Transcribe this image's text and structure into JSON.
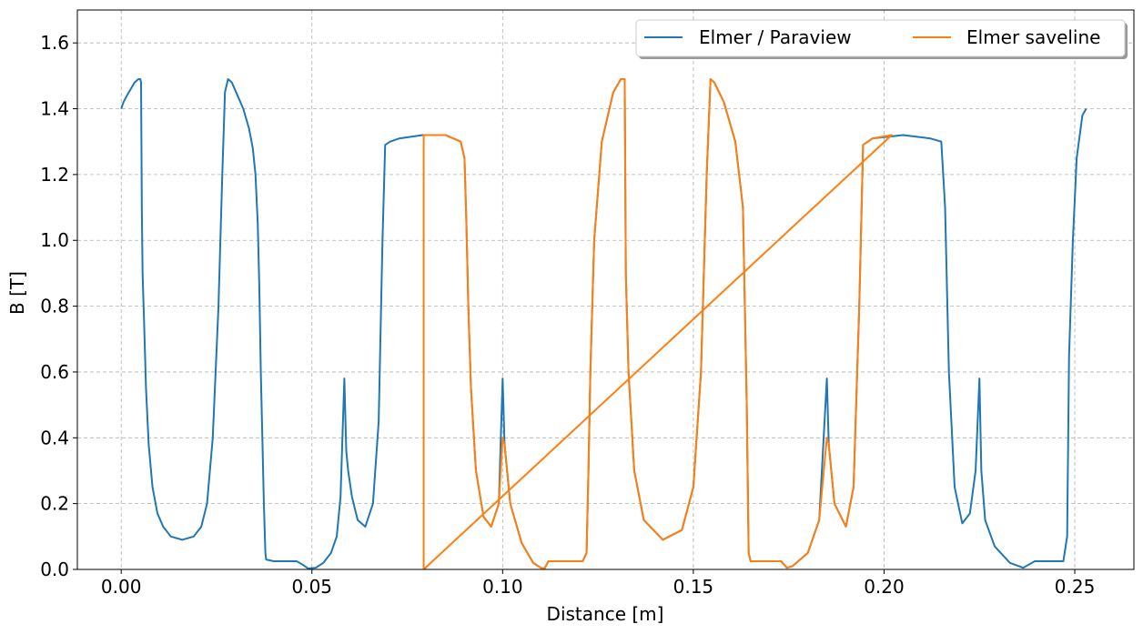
{
  "chart_data": {
    "type": "line",
    "title": "",
    "xlabel": "Distance [m]",
    "ylabel": "B [T]",
    "xlim": [
      -0.0115,
      0.2655
    ],
    "ylim": [
      0.0,
      1.7
    ],
    "x_ticks": [
      0.0,
      0.05,
      0.1,
      0.15,
      0.2,
      0.25
    ],
    "x_tick_labels": [
      "0.00",
      "0.05",
      "0.10",
      "0.15",
      "0.20",
      "0.25"
    ],
    "y_ticks": [
      0.0,
      0.2,
      0.4,
      0.6,
      0.8,
      1.0,
      1.2,
      1.4,
      1.6
    ],
    "y_tick_labels": [
      "0.0",
      "0.2",
      "0.4",
      "0.6",
      "0.8",
      "1.0",
      "1.2",
      "1.4",
      "1.6"
    ],
    "grid": true,
    "legend": {
      "placement": "top-right",
      "columns": 2
    },
    "series": [
      {
        "name": "Elmer / Paraview",
        "color": "#1f77b4",
        "points": [
          [
            0.0,
            1.4
          ],
          [
            0.0006,
            1.42
          ],
          [
            0.0015,
            1.44
          ],
          [
            0.0025,
            1.46
          ],
          [
            0.0035,
            1.48
          ],
          [
            0.0045,
            1.49
          ],
          [
            0.005,
            1.49
          ],
          [
            0.0052,
            1.48
          ],
          [
            0.0053,
            1.3
          ],
          [
            0.0054,
            1.1
          ],
          [
            0.0056,
            0.9
          ],
          [
            0.006,
            0.75
          ],
          [
            0.0065,
            0.55
          ],
          [
            0.0072,
            0.38
          ],
          [
            0.0082,
            0.25
          ],
          [
            0.0095,
            0.17
          ],
          [
            0.011,
            0.13
          ],
          [
            0.013,
            0.1
          ],
          [
            0.016,
            0.09
          ],
          [
            0.019,
            0.1
          ],
          [
            0.021,
            0.13
          ],
          [
            0.0225,
            0.2
          ],
          [
            0.024,
            0.4
          ],
          [
            0.0255,
            0.8
          ],
          [
            0.0265,
            1.2
          ],
          [
            0.0272,
            1.45
          ],
          [
            0.028,
            1.49
          ],
          [
            0.029,
            1.48
          ],
          [
            0.0305,
            1.44
          ],
          [
            0.032,
            1.4
          ],
          [
            0.0335,
            1.34
          ],
          [
            0.0345,
            1.28
          ],
          [
            0.0352,
            1.2
          ],
          [
            0.0358,
            1.05
          ],
          [
            0.0362,
            0.86
          ],
          [
            0.0366,
            0.6
          ],
          [
            0.037,
            0.4
          ],
          [
            0.0374,
            0.2
          ],
          [
            0.0378,
            0.05
          ],
          [
            0.038,
            0.03
          ],
          [
            0.04,
            0.025
          ],
          [
            0.046,
            0.025
          ],
          [
            0.0475,
            0.015
          ],
          [
            0.049,
            0.003
          ],
          [
            0.051,
            0.005
          ],
          [
            0.053,
            0.02
          ],
          [
            0.055,
            0.05
          ],
          [
            0.0565,
            0.1
          ],
          [
            0.0575,
            0.22
          ],
          [
            0.0585,
            0.58
          ],
          [
            0.059,
            0.36
          ],
          [
            0.0595,
            0.3
          ],
          [
            0.0605,
            0.22
          ],
          [
            0.062,
            0.15
          ],
          [
            0.064,
            0.13
          ],
          [
            0.066,
            0.2
          ],
          [
            0.0675,
            0.45
          ],
          [
            0.0685,
            1.0
          ],
          [
            0.0692,
            1.29
          ],
          [
            0.0705,
            1.3
          ],
          [
            0.073,
            1.31
          ],
          [
            0.079,
            1.32
          ],
          [
            0.085,
            1.32
          ],
          [
            0.089,
            1.3
          ],
          [
            0.09,
            1.25
          ],
          [
            0.0905,
            1.05
          ],
          [
            0.091,
            0.8
          ],
          [
            0.0917,
            0.55
          ],
          [
            0.093,
            0.3
          ],
          [
            0.095,
            0.16
          ],
          [
            0.097,
            0.13
          ],
          [
            0.099,
            0.2
          ],
          [
            0.1,
            0.58
          ],
          [
            0.1005,
            0.38
          ],
          [
            0.102,
            0.2
          ],
          [
            0.105,
            0.08
          ],
          [
            0.108,
            0.02
          ],
          [
            0.11,
            0.005
          ],
          [
            0.111,
            0.003
          ],
          [
            0.112,
            0.025
          ],
          [
            0.115,
            0.025
          ],
          [
            0.121,
            0.025
          ],
          [
            0.122,
            0.05
          ],
          [
            0.1225,
            0.3
          ],
          [
            0.123,
            0.6
          ],
          [
            0.124,
            1.0
          ],
          [
            0.126,
            1.3
          ],
          [
            0.129,
            1.45
          ],
          [
            0.131,
            1.49
          ],
          [
            0.132,
            1.49
          ],
          [
            0.1323,
            0.9
          ],
          [
            0.133,
            0.6
          ],
          [
            0.1345,
            0.3
          ],
          [
            0.137,
            0.15
          ],
          [
            0.142,
            0.09
          ],
          [
            0.147,
            0.12
          ],
          [
            0.15,
            0.25
          ],
          [
            0.152,
            0.6
          ],
          [
            0.1535,
            1.2
          ],
          [
            0.1545,
            1.49
          ],
          [
            0.1555,
            1.48
          ],
          [
            0.158,
            1.42
          ],
          [
            0.161,
            1.3
          ],
          [
            0.163,
            1.1
          ],
          [
            0.164,
            0.5
          ],
          [
            0.1645,
            0.05
          ],
          [
            0.165,
            0.025
          ],
          [
            0.173,
            0.025
          ],
          [
            0.1745,
            0.005
          ],
          [
            0.176,
            0.01
          ],
          [
            0.18,
            0.05
          ],
          [
            0.183,
            0.15
          ],
          [
            0.185,
            0.58
          ],
          [
            0.1855,
            0.38
          ],
          [
            0.187,
            0.2
          ],
          [
            0.19,
            0.13
          ],
          [
            0.192,
            0.25
          ],
          [
            0.1935,
            0.8
          ],
          [
            0.1945,
            1.29
          ],
          [
            0.197,
            1.31
          ],
          [
            0.205,
            1.32
          ],
          [
            0.212,
            1.31
          ],
          [
            0.215,
            1.3
          ],
          [
            0.216,
            1.1
          ],
          [
            0.217,
            0.6
          ],
          [
            0.2185,
            0.25
          ],
          [
            0.2205,
            0.14
          ],
          [
            0.2225,
            0.17
          ],
          [
            0.224,
            0.3
          ],
          [
            0.225,
            0.58
          ],
          [
            0.2255,
            0.3
          ],
          [
            0.2265,
            0.15
          ],
          [
            0.229,
            0.07
          ],
          [
            0.233,
            0.02
          ],
          [
            0.2365,
            0.005
          ],
          [
            0.238,
            0.015
          ],
          [
            0.2395,
            0.025
          ],
          [
            0.247,
            0.025
          ],
          [
            0.248,
            0.1
          ],
          [
            0.2485,
            0.65
          ],
          [
            0.2495,
            1.0
          ],
          [
            0.2505,
            1.25
          ],
          [
            0.252,
            1.38
          ],
          [
            0.253,
            1.4
          ]
        ]
      },
      {
        "name": "Elmer saveline",
        "color": "#ff7f0e",
        "points": [
          [
            0.0793,
            0.0
          ],
          [
            0.0793,
            1.32
          ],
          [
            0.085,
            1.32
          ],
          [
            0.089,
            1.3
          ],
          [
            0.09,
            1.25
          ],
          [
            0.0905,
            1.05
          ],
          [
            0.091,
            0.8
          ],
          [
            0.0917,
            0.55
          ],
          [
            0.093,
            0.3
          ],
          [
            0.095,
            0.16
          ],
          [
            0.097,
            0.13
          ],
          [
            0.099,
            0.2
          ],
          [
            0.1,
            0.4
          ],
          [
            0.1005,
            0.38
          ],
          [
            0.102,
            0.2
          ],
          [
            0.105,
            0.08
          ],
          [
            0.108,
            0.02
          ],
          [
            0.11,
            0.005
          ],
          [
            0.111,
            0.003
          ],
          [
            0.112,
            0.025
          ],
          [
            0.115,
            0.025
          ],
          [
            0.121,
            0.025
          ],
          [
            0.122,
            0.05
          ],
          [
            0.1225,
            0.3
          ],
          [
            0.123,
            0.6
          ],
          [
            0.124,
            1.0
          ],
          [
            0.126,
            1.3
          ],
          [
            0.129,
            1.45
          ],
          [
            0.131,
            1.49
          ],
          [
            0.132,
            1.49
          ],
          [
            0.1323,
            0.9
          ],
          [
            0.133,
            0.6
          ],
          [
            0.1345,
            0.3
          ],
          [
            0.137,
            0.15
          ],
          [
            0.142,
            0.09
          ],
          [
            0.147,
            0.12
          ],
          [
            0.15,
            0.25
          ],
          [
            0.152,
            0.6
          ],
          [
            0.1535,
            1.2
          ],
          [
            0.1545,
            1.49
          ],
          [
            0.1555,
            1.48
          ],
          [
            0.158,
            1.42
          ],
          [
            0.161,
            1.3
          ],
          [
            0.163,
            1.1
          ],
          [
            0.164,
            0.5
          ],
          [
            0.1645,
            0.05
          ],
          [
            0.165,
            0.025
          ],
          [
            0.173,
            0.025
          ],
          [
            0.1745,
            0.005
          ],
          [
            0.176,
            0.01
          ],
          [
            0.18,
            0.05
          ],
          [
            0.183,
            0.15
          ],
          [
            0.185,
            0.4
          ],
          [
            0.1855,
            0.38
          ],
          [
            0.187,
            0.2
          ],
          [
            0.19,
            0.13
          ],
          [
            0.192,
            0.25
          ],
          [
            0.1935,
            0.8
          ],
          [
            0.1945,
            1.29
          ],
          [
            0.197,
            1.31
          ],
          [
            0.202,
            1.32
          ],
          [
            0.0793,
            0.0
          ]
        ]
      }
    ]
  }
}
